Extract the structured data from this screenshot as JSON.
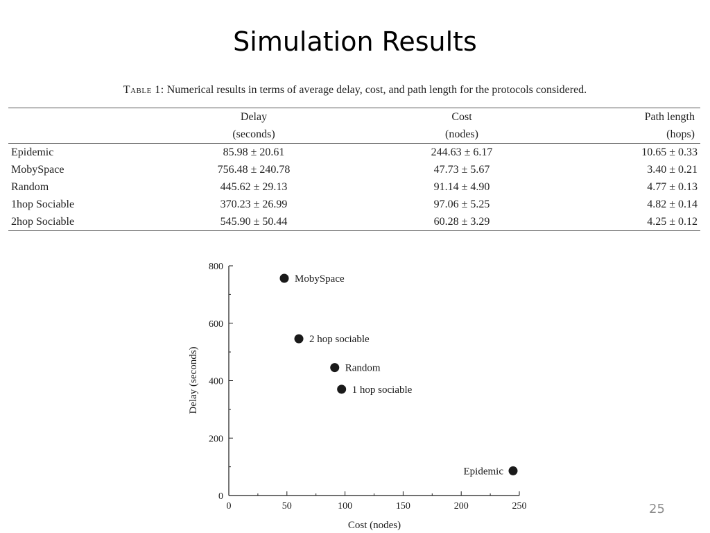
{
  "slide": {
    "title": "Simulation Results",
    "page_number": "25"
  },
  "table": {
    "caption_label": "Table 1:",
    "caption_text": "Numerical results in terms of average delay, cost, and path length for the protocols considered.",
    "header_row1": [
      "",
      "Delay",
      "Cost",
      "Path length"
    ],
    "header_row2": [
      "",
      "(seconds)",
      "(nodes)",
      "(hops)"
    ],
    "rows": [
      [
        "Epidemic",
        "85.98 ± 20.61",
        "244.63 ± 6.17",
        "10.65 ± 0.33"
      ],
      [
        "MobySpace",
        "756.48 ± 240.78",
        "47.73 ± 5.67",
        "3.40 ± 0.21"
      ],
      [
        "Random",
        "445.62 ± 29.13",
        "91.14 ± 4.90",
        "4.77 ± 0.13"
      ],
      [
        "1hop Sociable",
        "370.23 ± 26.99",
        "97.06 ± 5.25",
        "4.82 ± 0.14"
      ],
      [
        "2hop Sociable",
        "545.90 ± 50.44",
        "60.28 ± 3.29",
        "4.25 ± 0.12"
      ]
    ]
  },
  "chart_data": {
    "type": "scatter",
    "xlabel": "Cost (nodes)",
    "ylabel": "Delay (seconds)",
    "xlim": [
      0,
      250
    ],
    "ylim": [
      0,
      800
    ],
    "xticks": [
      0,
      50,
      100,
      150,
      200,
      250
    ],
    "yticks": [
      0,
      200,
      400,
      600,
      800
    ],
    "grid": false,
    "marker_color": "#1a1a1a",
    "points": [
      {
        "label": "MobySpace",
        "x": 47.73,
        "y": 756.48,
        "label_side": "right"
      },
      {
        "label": "2 hop sociable",
        "x": 60.28,
        "y": 545.9,
        "label_side": "right"
      },
      {
        "label": "Random",
        "x": 91.14,
        "y": 445.62,
        "label_side": "right"
      },
      {
        "label": "1 hop sociable",
        "x": 97.06,
        "y": 370.23,
        "label_side": "right"
      },
      {
        "label": "Epidemic",
        "x": 244.63,
        "y": 85.98,
        "label_side": "left"
      }
    ]
  }
}
